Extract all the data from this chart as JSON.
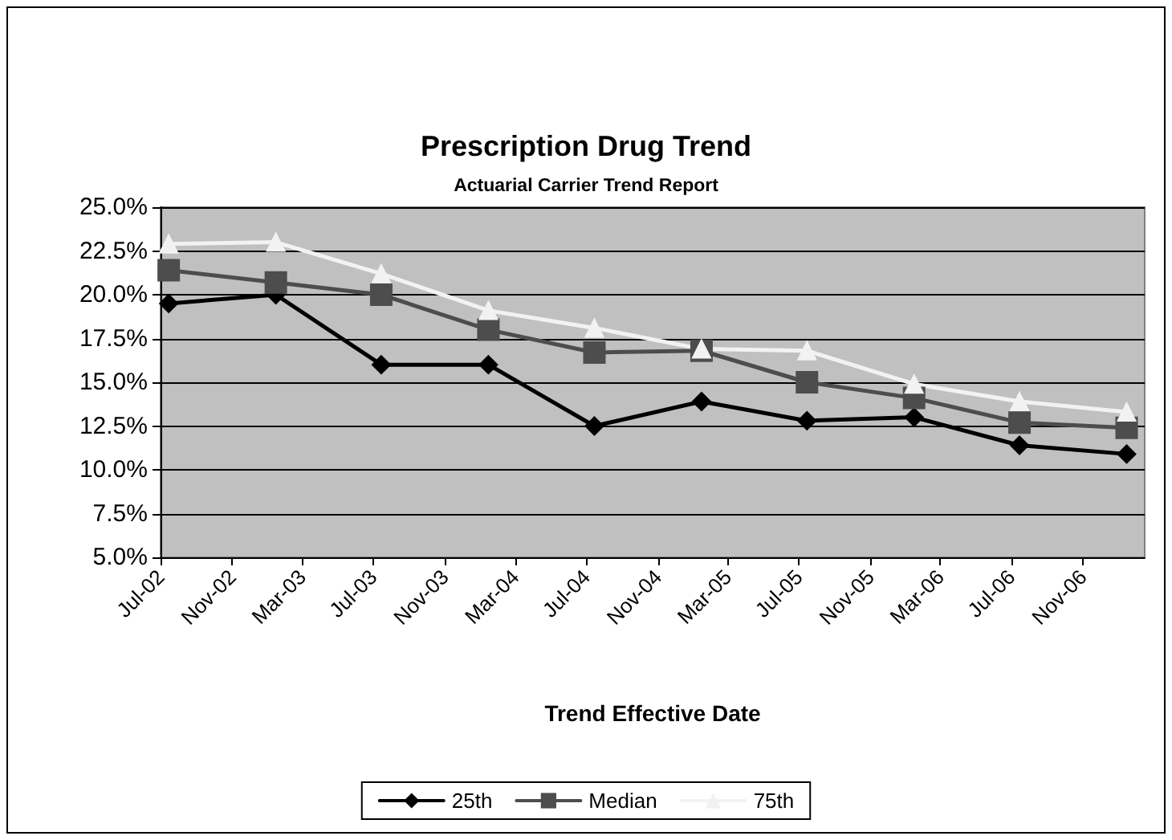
{
  "chart_data": {
    "type": "line",
    "title": "Prescription Drug Trend",
    "subtitle": "Actuarial Carrier Trend Report",
    "xlabel": "Trend Effective Date",
    "x": [
      "2002-07-15",
      "2003-01-15",
      "2003-07-15",
      "2004-01-15",
      "2004-07-15",
      "2005-01-15",
      "2005-07-15",
      "2006-01-15",
      "2006-07-15",
      "2007-01-15"
    ],
    "series": [
      {
        "name": "25th",
        "color": "#000000",
        "marker": "diamond",
        "values": [
          19.5,
          20.0,
          16.0,
          16.0,
          12.5,
          13.9,
          12.8,
          13.0,
          11.4,
          10.9
        ]
      },
      {
        "name": "Median",
        "color": "#4d4d4d",
        "marker": "square",
        "values": [
          21.4,
          20.7,
          20.0,
          18.0,
          16.7,
          16.8,
          15.0,
          14.1,
          12.7,
          12.4
        ]
      },
      {
        "name": "75th",
        "color": "#f2f2f2",
        "marker": "triangle",
        "values": [
          22.9,
          23.0,
          21.2,
          19.1,
          18.1,
          16.9,
          16.8,
          14.9,
          13.9,
          13.3
        ]
      }
    ],
    "xlim": [
      "2002-07-01",
      "2007-02-15"
    ],
    "xticks": [
      {
        "value": "2002-07-01",
        "label": "Jul-02"
      },
      {
        "value": "2002-11-01",
        "label": "Nov-02"
      },
      {
        "value": "2003-03-01",
        "label": "Mar-03"
      },
      {
        "value": "2003-07-01",
        "label": "Jul-03"
      },
      {
        "value": "2003-11-01",
        "label": "Nov-03"
      },
      {
        "value": "2004-03-01",
        "label": "Mar-04"
      },
      {
        "value": "2004-07-01",
        "label": "Jul-04"
      },
      {
        "value": "2004-11-01",
        "label": "Nov-04"
      },
      {
        "value": "2005-03-01",
        "label": "Mar-05"
      },
      {
        "value": "2005-07-01",
        "label": "Jul-05"
      },
      {
        "value": "2005-11-01",
        "label": "Nov-05"
      },
      {
        "value": "2006-03-01",
        "label": "Mar-06"
      },
      {
        "value": "2006-07-01",
        "label": "Jul-06"
      },
      {
        "value": "2006-11-01",
        "label": "Nov-06"
      }
    ],
    "ylim": [
      5,
      25
    ],
    "yticks": [
      {
        "value": 5,
        "label": "5.0%"
      },
      {
        "value": 7.5,
        "label": "7.5%"
      },
      {
        "value": 10,
        "label": "10.0%"
      },
      {
        "value": 12.5,
        "label": "12.5%"
      },
      {
        "value": 15,
        "label": "15.0%"
      },
      {
        "value": 17.5,
        "label": "17.5%"
      },
      {
        "value": 20,
        "label": "20.0%"
      },
      {
        "value": 22.5,
        "label": "22.5%"
      },
      {
        "value": 25,
        "label": "25.0%"
      }
    ],
    "grid": "y",
    "legend": "bottom",
    "line_style": "solid"
  }
}
